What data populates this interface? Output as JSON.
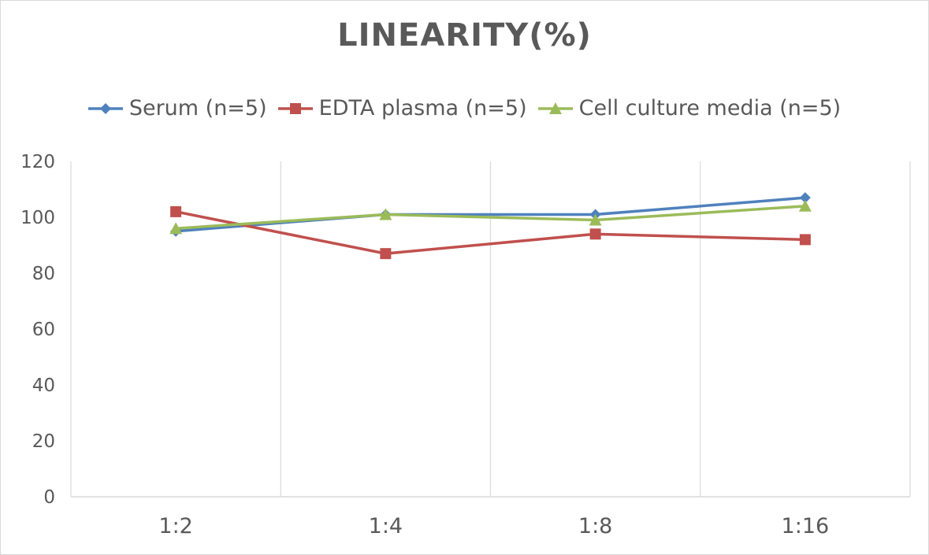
{
  "chart_data": {
    "type": "line",
    "title": "LINEARITY(%)",
    "xlabel": "",
    "ylabel": "",
    "categories": [
      "1:2",
      "1:4",
      "1:8",
      "1:16"
    ],
    "ylim": [
      0,
      120
    ],
    "yticks": [
      0,
      20,
      40,
      60,
      80,
      100,
      120
    ],
    "grid": "vertical",
    "legend_position": "top",
    "series": [
      {
        "name": "Serum (n=5)",
        "values": [
          95,
          101,
          101,
          107
        ],
        "color": "#4f81bd",
        "marker": "diamond"
      },
      {
        "name": "EDTA plasma (n=5)",
        "values": [
          102,
          87,
          94,
          92
        ],
        "color": "#c0504d",
        "marker": "square"
      },
      {
        "name": "Cell culture media (n=5)",
        "values": [
          96,
          101,
          99,
          104
        ],
        "color": "#9bbb59",
        "marker": "triangle"
      }
    ]
  }
}
